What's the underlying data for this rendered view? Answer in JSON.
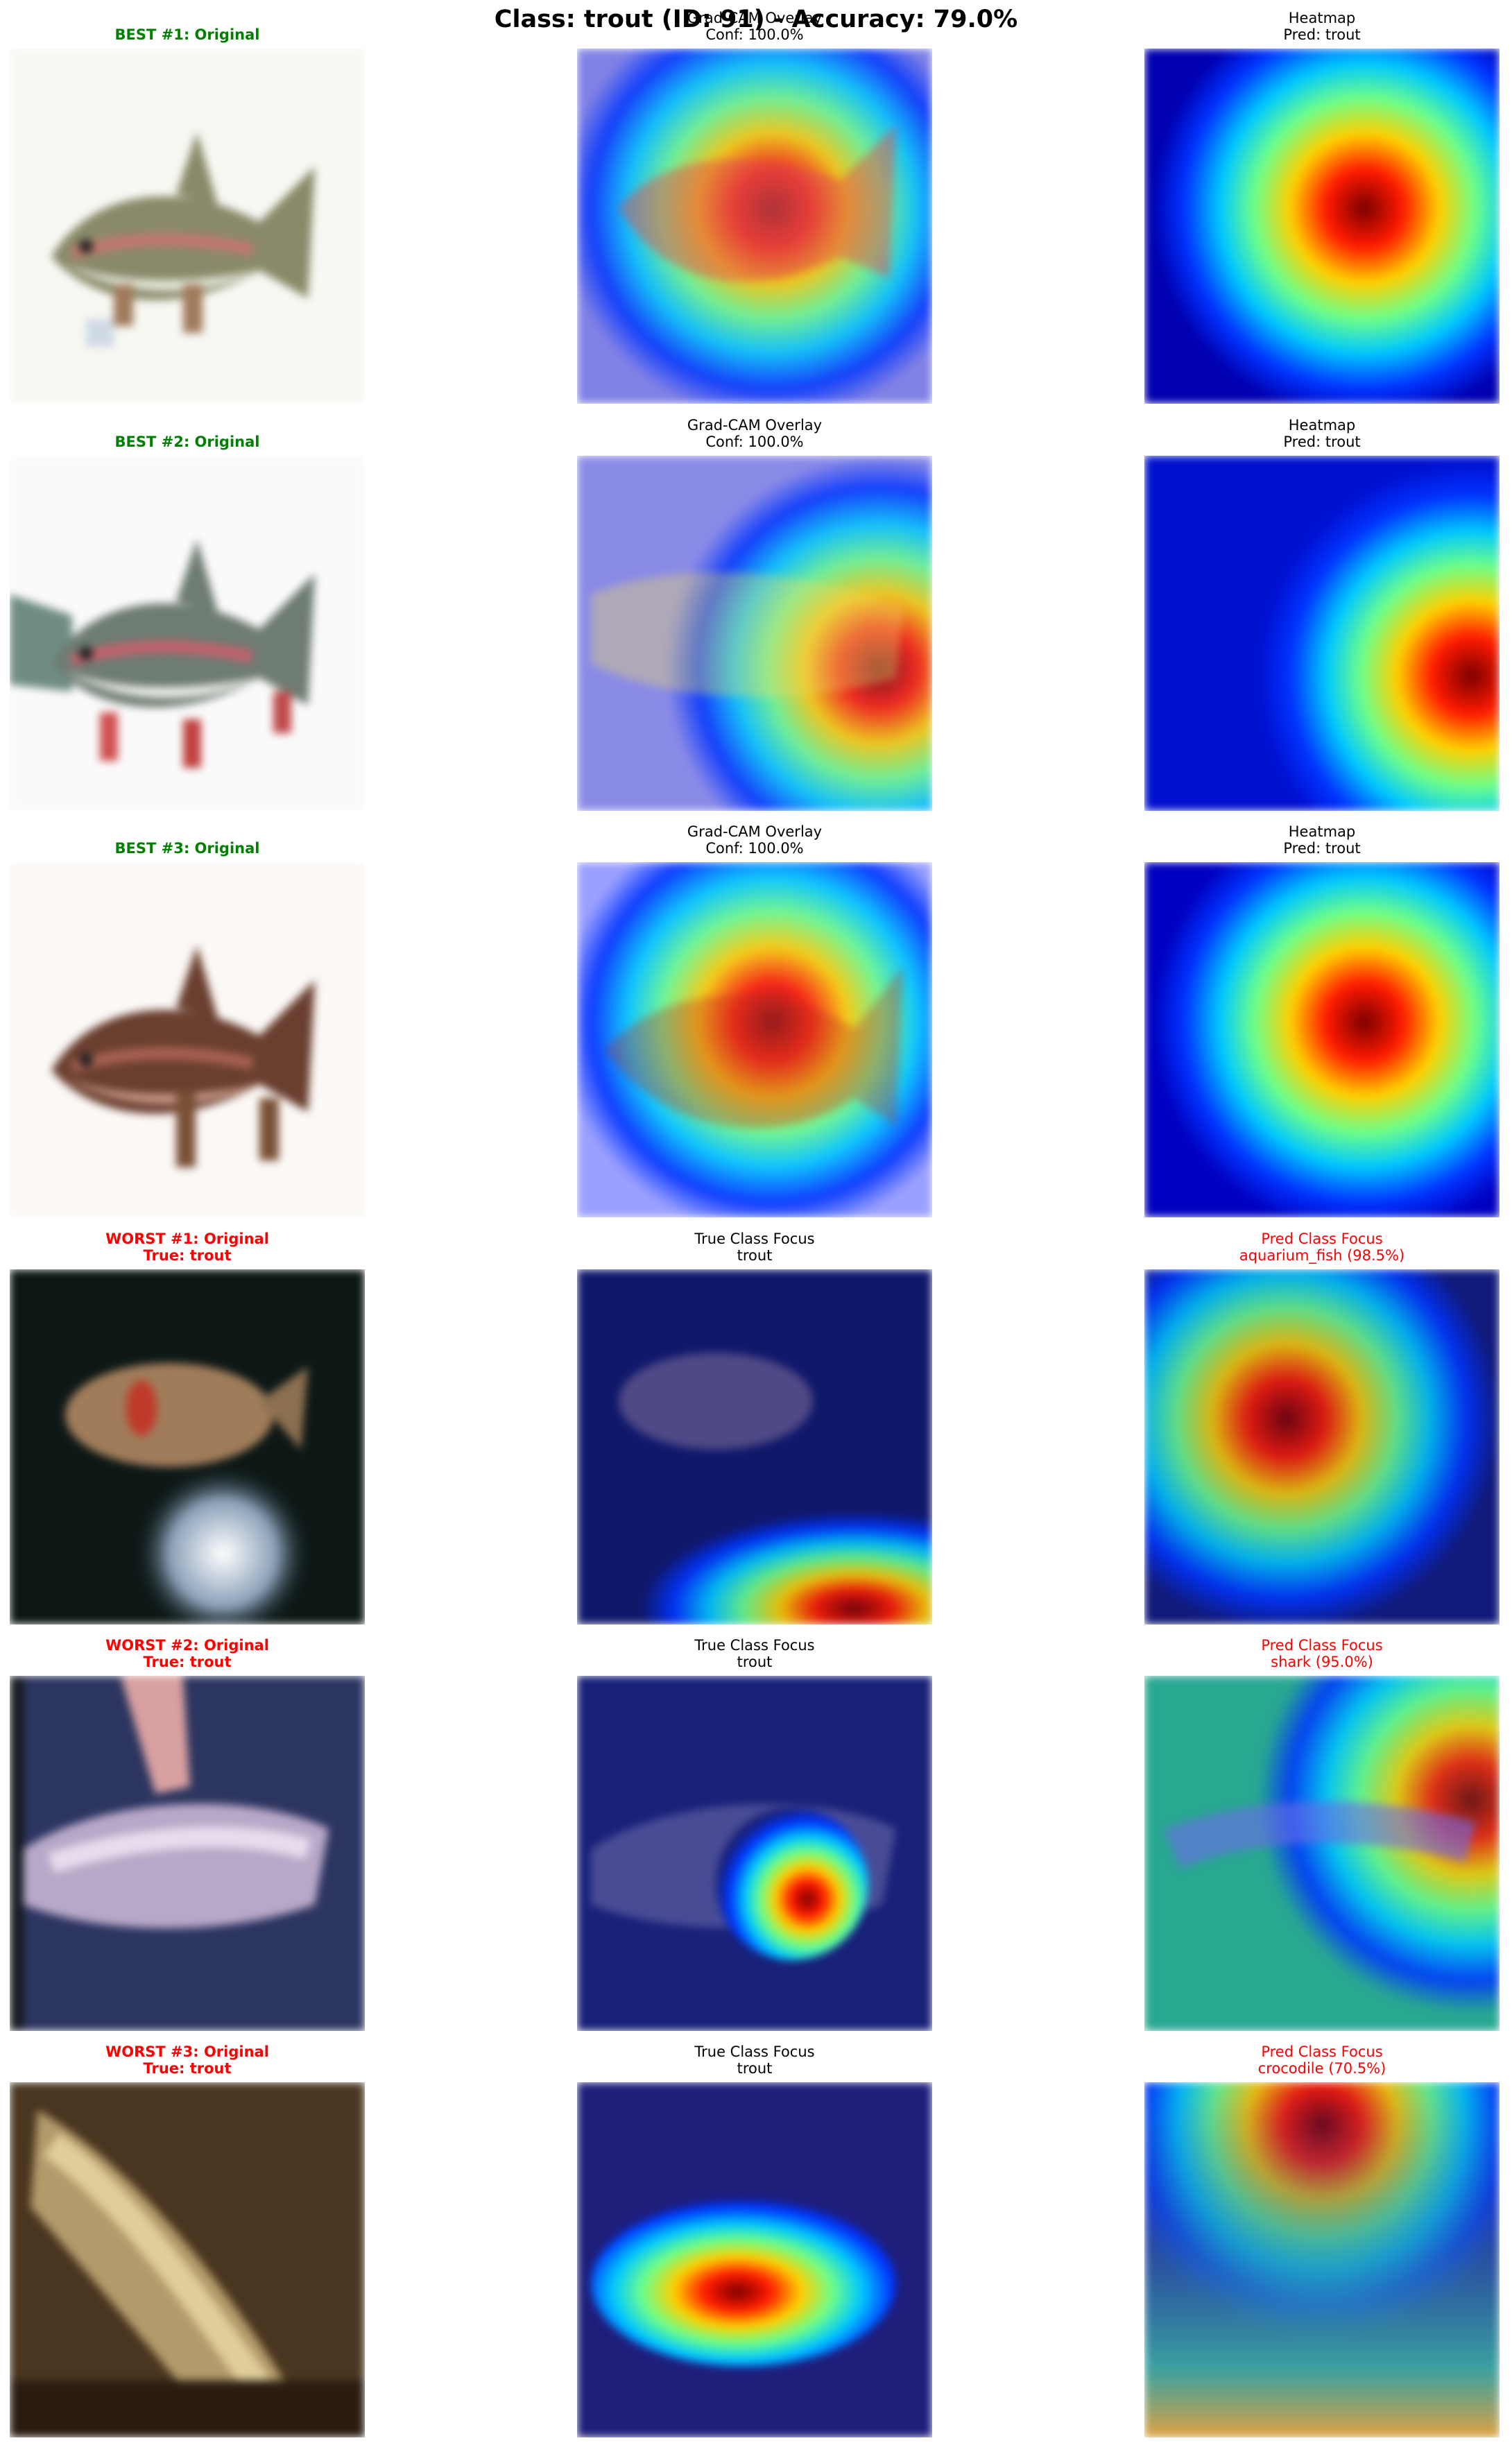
{
  "title": "Class: trout (ID: 91) - Accuracy: 79.0%",
  "colors": {
    "best": "#008000",
    "worst": "#ff0000",
    "normal": "#000000"
  },
  "rows": [
    {
      "panels": [
        {
          "title": "BEST #1: Original",
          "color": "best",
          "bold": true,
          "kind": "photo-trout-1"
        },
        {
          "title": "Grad-CAM Overlay\nConf: 100.0%",
          "color": "normal",
          "bold": false,
          "kind": "overlay-a"
        },
        {
          "title": "Heatmap\nPred: trout",
          "color": "normal",
          "bold": false,
          "kind": "heatmap-a"
        }
      ]
    },
    {
      "panels": [
        {
          "title": "BEST #2: Original",
          "color": "best",
          "bold": true,
          "kind": "photo-trout-2"
        },
        {
          "title": "Grad-CAM Overlay\nConf: 100.0%",
          "color": "normal",
          "bold": false,
          "kind": "overlay-b"
        },
        {
          "title": "Heatmap\nPred: trout",
          "color": "normal",
          "bold": false,
          "kind": "heatmap-b"
        }
      ]
    },
    {
      "panels": [
        {
          "title": "BEST #3: Original",
          "color": "best",
          "bold": true,
          "kind": "photo-trout-3"
        },
        {
          "title": "Grad-CAM Overlay\nConf: 100.0%",
          "color": "normal",
          "bold": false,
          "kind": "overlay-c"
        },
        {
          "title": "Heatmap\nPred: trout",
          "color": "normal",
          "bold": false,
          "kind": "heatmap-c"
        }
      ]
    },
    {
      "panels": [
        {
          "title": "WORST #1: Original\nTrue: trout",
          "color": "worst",
          "bold": true,
          "kind": "photo-dark-fish"
        },
        {
          "title": "True Class Focus\ntrout",
          "color": "normal",
          "bold": false,
          "kind": "focus-true-1"
        },
        {
          "title": "Pred Class Focus\naquarium_fish (98.5%)",
          "color": "worst",
          "bold": false,
          "kind": "focus-pred-1"
        }
      ]
    },
    {
      "panels": [
        {
          "title": "WORST #2: Original\nTrue: trout",
          "color": "worst",
          "bold": true,
          "kind": "photo-blue-fish"
        },
        {
          "title": "True Class Focus\ntrout",
          "color": "normal",
          "bold": false,
          "kind": "focus-true-2"
        },
        {
          "title": "Pred Class Focus\nshark (95.0%)",
          "color": "worst",
          "bold": false,
          "kind": "focus-pred-2"
        }
      ]
    },
    {
      "panels": [
        {
          "title": "WORST #3: Original\nTrue: trout",
          "color": "worst",
          "bold": true,
          "kind": "photo-brown"
        },
        {
          "title": "True Class Focus\ntrout",
          "color": "normal",
          "bold": false,
          "kind": "focus-true-3"
        },
        {
          "title": "Pred Class Focus\ncrocodile (70.5%)",
          "color": "worst",
          "bold": false,
          "kind": "focus-pred-3"
        }
      ]
    }
  ]
}
